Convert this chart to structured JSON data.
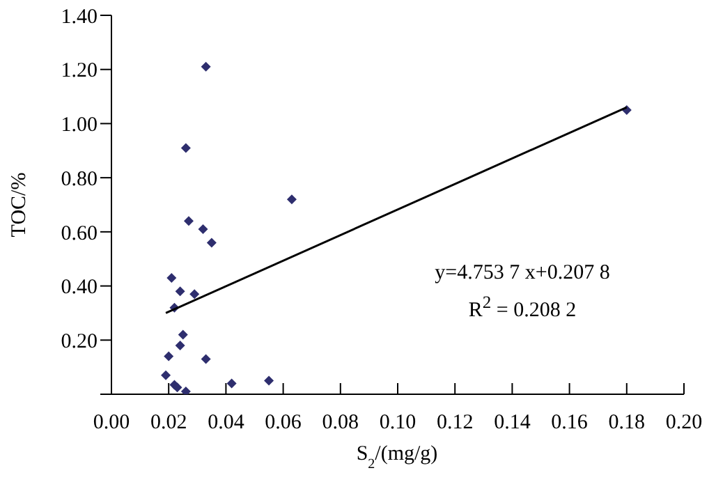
{
  "chart_data": {
    "type": "scatter",
    "xlabel": "S$_{2}$/(mg/g)",
    "ylabel": "TOC/%",
    "annotations": [
      "y=4.753 7 x+0.207 8",
      "R$^{2}$ = 0.208 2"
    ],
    "series": [
      {
        "color": "#2e2e6e",
        "marker": "diamond",
        "x": [
          0.033,
          0.026,
          0.063,
          0.027,
          0.032,
          0.035,
          0.021,
          0.024,
          0.029,
          0.022,
          0.025,
          0.024,
          0.02,
          0.033,
          0.019,
          0.022,
          0.023,
          0.026,
          0.042,
          0.055,
          0.18
        ],
        "values": [
          1.21,
          0.91,
          0.72,
          0.64,
          0.61,
          0.56,
          0.43,
          0.38,
          0.37,
          0.32,
          0.22,
          0.18,
          0.14,
          0.13,
          0.07,
          0.035,
          0.025,
          0.01,
          0.04,
          0.05,
          1.05
        ]
      },
      {
        "type": "line",
        "color": "#000000",
        "marker": "none",
        "x": [
          0.019,
          0.18
        ],
        "values": [
          0.3,
          1.06
        ]
      }
    ],
    "xlim": [
      0,
      0.2
    ],
    "ylim": [
      0,
      1.4
    ],
    "xticks": [
      {
        "value": 0,
        "label": "0.00"
      },
      {
        "value": 0.02,
        "label": "0.02"
      },
      {
        "value": 0.04,
        "label": "0.04"
      },
      {
        "value": 0.06,
        "label": "0.06"
      },
      {
        "value": 0.08,
        "label": "0.08"
      },
      {
        "value": 0.1,
        "label": "0.10"
      },
      {
        "value": 0.12,
        "label": "0.12"
      },
      {
        "value": 0.14,
        "label": "0.14"
      },
      {
        "value": 0.16,
        "label": "0.16"
      },
      {
        "value": 0.18,
        "label": "0.18"
      },
      {
        "value": 0.2,
        "label": "0.20"
      }
    ],
    "yticks": [
      {
        "value": 0,
        "label": null
      },
      {
        "value": 0.2,
        "label": "0.20"
      },
      {
        "value": 0.4,
        "label": "0.40"
      },
      {
        "value": 0.6,
        "label": "0.60"
      },
      {
        "value": 0.8,
        "label": "0.80"
      },
      {
        "value": 1,
        "label": "1.00"
      },
      {
        "value": 1.2,
        "label": "1.20"
      },
      {
        "value": 1.4,
        "label": "1.40"
      }
    ],
    "grid": false,
    "legend": false
  }
}
